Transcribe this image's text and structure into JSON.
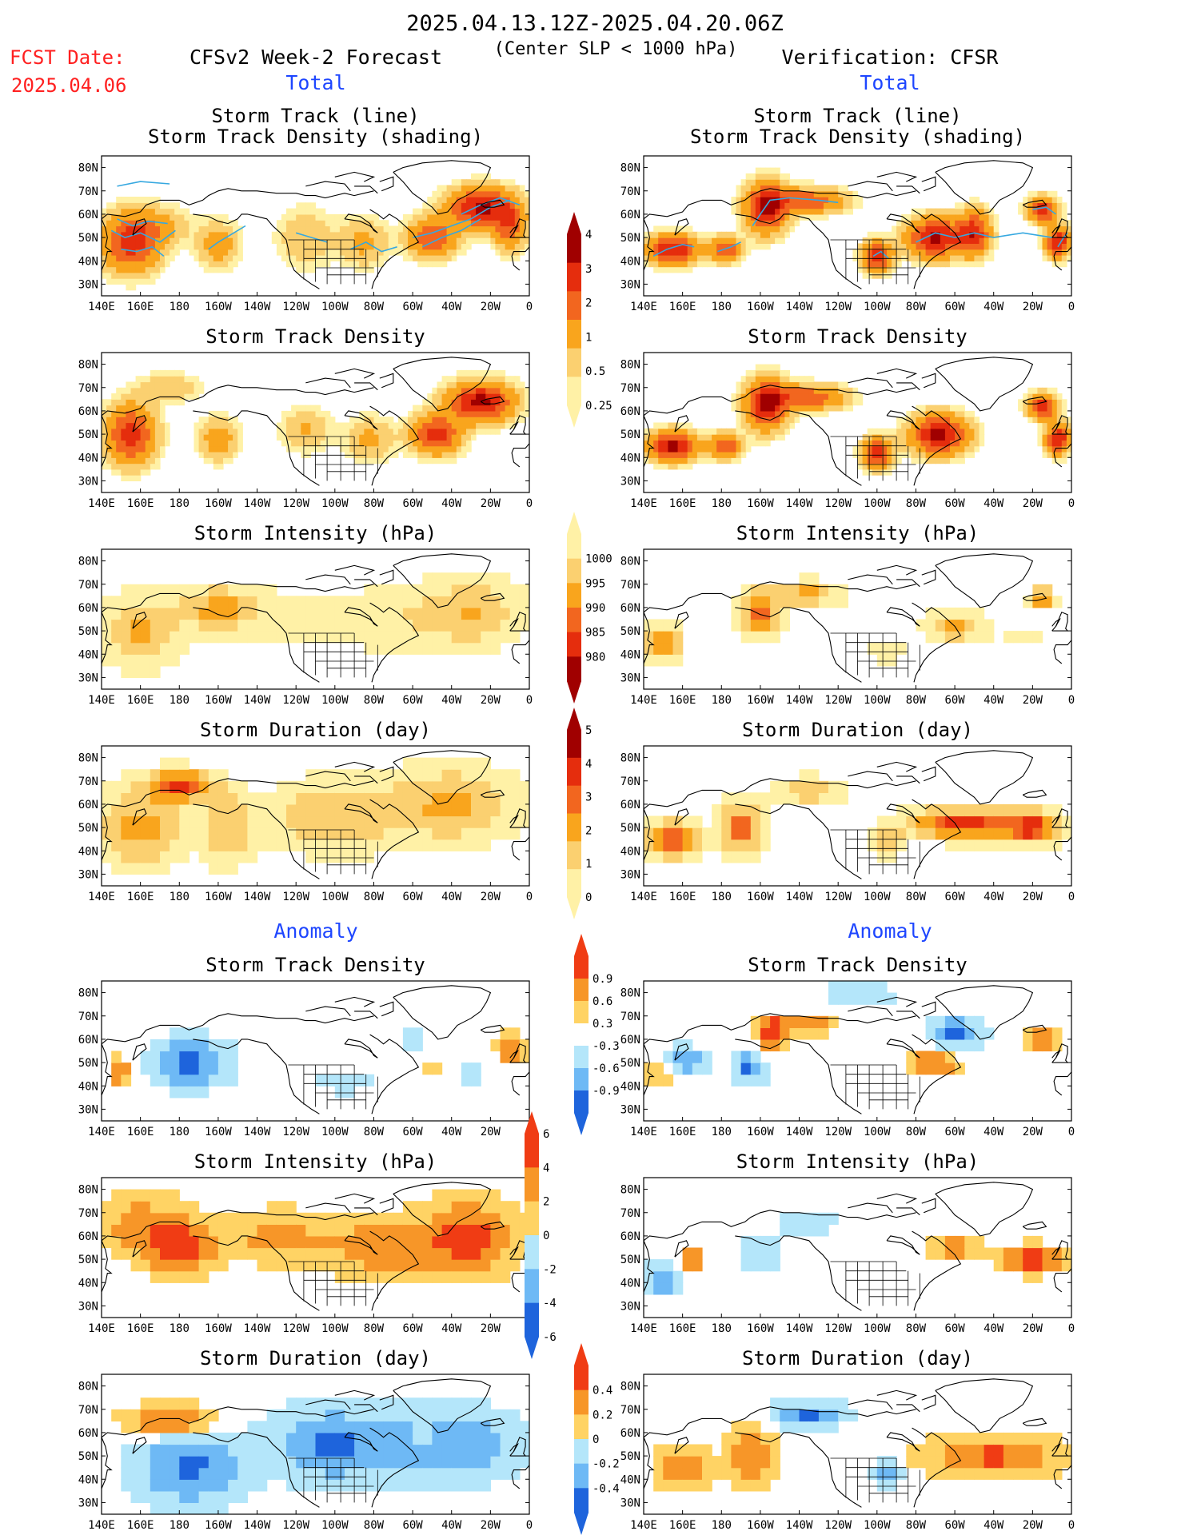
{
  "header": {
    "period": "2025.04.13.12Z-2025.04.20.06Z",
    "subtitle": "(Center SLP < 1000 hPa)",
    "fcst_label": "FCST Date:",
    "fcst_date": "2025.04.06",
    "left_title": "CFSv2 Week-2 Forecast",
    "right_title": "Verification: CFSR",
    "total_label": "Total",
    "anomaly_label": "Anomaly",
    "red": "#ff2020",
    "blue": "#1e46ff"
  },
  "axes": {
    "lon_labels": [
      "140E",
      "160E",
      "180",
      "160W",
      "140W",
      "120W",
      "100W",
      "80W",
      "60W",
      "40W",
      "20W",
      "0"
    ],
    "lat_labels": [
      "80N",
      "70N",
      "60N",
      "50N",
      "40N",
      "30N"
    ],
    "lon_range": [
      140,
      360
    ],
    "lat_range": [
      25,
      85
    ]
  },
  "colorbars": [
    {
      "id": "track-density",
      "labels": [
        "4",
        "3",
        "2",
        "1",
        "0.5",
        "0.25"
      ],
      "colors": [
        "#a00000",
        "#e52d0d",
        "#f2661f",
        "#f9a51d",
        "#fbd070",
        "#fff1a6"
      ]
    },
    {
      "id": "intensity",
      "labels": [
        "1000",
        "995",
        "990",
        "985",
        "980"
      ],
      "colors": [
        "#fff1a6",
        "#fbd070",
        "#f9a51d",
        "#f2661f",
        "#e52d0d",
        "#a00000"
      ]
    },
    {
      "id": "duration",
      "labels": [
        "5",
        "4",
        "3",
        "2",
        "1",
        "0"
      ],
      "colors": [
        "#a00000",
        "#e52d0d",
        "#f2661f",
        "#f9a51d",
        "#fbd070",
        "#fff1a6"
      ]
    },
    {
      "id": "anom-density",
      "labels": [
        "0.9",
        "0.6",
        "0.3",
        "-0.3",
        "-0.6",
        "-0.9"
      ],
      "colors": [
        "#f03c14",
        "#f79628",
        "#ffd364",
        "#ffffff",
        "#b4e6fa",
        "#6eb9f5",
        "#1e64dc"
      ]
    },
    {
      "id": "anom-intensity",
      "labels": [
        "6",
        "4",
        "2",
        "0",
        "-2",
        "-4",
        "-6"
      ],
      "colors": [
        "#f03c14",
        "#f79628",
        "#ffd364",
        "#b4e6fa",
        "#6eb9f5",
        "#1e64dc"
      ]
    },
    {
      "id": "anom-duration",
      "labels": [
        "0.4",
        "0.2",
        "0",
        "-0.2",
        "-0.4"
      ],
      "colors": [
        "#f03c14",
        "#f79628",
        "#ffd364",
        "#b4e6fa",
        "#6eb9f5",
        "#1e64dc"
      ]
    }
  ],
  "chart_data": [
    {
      "type": "heatmap",
      "id": "fcst-track",
      "title": "Storm Track (line)",
      "subtitle": "Storm Track Density (shading)",
      "scale": "density",
      "tracks": true,
      "blobs": [
        {
          "lon": 155,
          "lat": 48,
          "w": 14,
          "h": 12,
          "v": 3.5
        },
        {
          "lon": 170,
          "lat": 55,
          "w": 15,
          "h": 8,
          "v": 1.1
        },
        {
          "lon": 200,
          "lat": 47,
          "w": 10,
          "h": 9,
          "v": 1.6
        },
        {
          "lon": 245,
          "lat": 50,
          "w": 14,
          "h": 12,
          "v": 1.0
        },
        {
          "lon": 275,
          "lat": 48,
          "w": 12,
          "h": 10,
          "v": 1.2
        },
        {
          "lon": 310,
          "lat": 50,
          "w": 12,
          "h": 8,
          "v": 3.0
        },
        {
          "lon": 335,
          "lat": 63,
          "w": 16,
          "h": 8,
          "v": 4.2
        },
        {
          "lon": 350,
          "lat": 55,
          "w": 8,
          "h": 10,
          "v": 2.5
        }
      ]
    },
    {
      "type": "heatmap",
      "id": "cfsr-track",
      "title": "Storm Track (line)",
      "subtitle": "Storm Track Density (shading)",
      "scale": "density",
      "tracks": true,
      "blobs": [
        {
          "lon": 155,
          "lat": 45,
          "w": 12,
          "h": 6,
          "v": 4.2
        },
        {
          "lon": 182,
          "lat": 45,
          "w": 8,
          "h": 5,
          "v": 3.0
        },
        {
          "lon": 203,
          "lat": 63,
          "w": 10,
          "h": 10,
          "v": 4.4
        },
        {
          "lon": 225,
          "lat": 66,
          "w": 18,
          "h": 5,
          "v": 2.8
        },
        {
          "lon": 260,
          "lat": 42,
          "w": 7,
          "h": 6,
          "v": 4.0
        },
        {
          "lon": 290,
          "lat": 50,
          "w": 14,
          "h": 8,
          "v": 4.3
        },
        {
          "lon": 310,
          "lat": 52,
          "w": 8,
          "h": 9,
          "v": 3.5
        },
        {
          "lon": 345,
          "lat": 62,
          "w": 7,
          "h": 5,
          "v": 4.0
        },
        {
          "lon": 353,
          "lat": 48,
          "w": 6,
          "h": 6,
          "v": 4.1
        }
      ]
    },
    {
      "type": "heatmap",
      "id": "fcst-density",
      "title": "Storm Track Density",
      "scale": "density",
      "tracks": false,
      "blobs": [
        {
          "lon": 155,
          "lat": 50,
          "w": 12,
          "h": 12,
          "v": 3.6
        },
        {
          "lon": 175,
          "lat": 70,
          "w": 15,
          "h": 6,
          "v": 1.0
        },
        {
          "lon": 200,
          "lat": 48,
          "w": 10,
          "h": 9,
          "v": 1.5
        },
        {
          "lon": 245,
          "lat": 52,
          "w": 12,
          "h": 9,
          "v": 1.1
        },
        {
          "lon": 278,
          "lat": 48,
          "w": 12,
          "h": 9,
          "v": 1.2
        },
        {
          "lon": 312,
          "lat": 50,
          "w": 12,
          "h": 8,
          "v": 3.5
        },
        {
          "lon": 335,
          "lat": 64,
          "w": 16,
          "h": 8,
          "v": 4.4
        }
      ]
    },
    {
      "type": "heatmap",
      "id": "cfsr-density",
      "title": "Storm Track Density",
      "scale": "density",
      "tracks": false,
      "blobs": [
        {
          "lon": 155,
          "lat": 45,
          "w": 12,
          "h": 6,
          "v": 4.3
        },
        {
          "lon": 182,
          "lat": 45,
          "w": 8,
          "h": 5,
          "v": 3.0
        },
        {
          "lon": 203,
          "lat": 63,
          "w": 10,
          "h": 10,
          "v": 4.4
        },
        {
          "lon": 225,
          "lat": 66,
          "w": 18,
          "h": 5,
          "v": 2.8
        },
        {
          "lon": 260,
          "lat": 42,
          "w": 7,
          "h": 6,
          "v": 4.0
        },
        {
          "lon": 292,
          "lat": 50,
          "w": 14,
          "h": 8,
          "v": 4.4
        },
        {
          "lon": 345,
          "lat": 62,
          "w": 7,
          "h": 5,
          "v": 4.0
        },
        {
          "lon": 353,
          "lat": 48,
          "w": 6,
          "h": 6,
          "v": 4.1
        }
      ]
    },
    {
      "type": "heatmap",
      "id": "fcst-intensity",
      "title": "Storm Intensity (hPa)",
      "scale": "intensity",
      "tracks": false,
      "blobs": [
        {
          "lon": 160,
          "lat": 50,
          "w": 20,
          "h": 14,
          "v": 1.7
        },
        {
          "lon": 200,
          "lat": 60,
          "w": 18,
          "h": 9,
          "v": 1.9
        },
        {
          "lon": 240,
          "lat": 55,
          "w": 30,
          "h": 14,
          "v": 0.6
        },
        {
          "lon": 290,
          "lat": 55,
          "w": 25,
          "h": 14,
          "v": 0.7
        },
        {
          "lon": 330,
          "lat": 58,
          "w": 25,
          "h": 14,
          "v": 1.6
        }
      ]
    },
    {
      "type": "heatmap",
      "id": "cfsr-intensity",
      "title": "Storm Intensity (hPa)",
      "scale": "intensity",
      "tracks": false,
      "blobs": [
        {
          "lon": 150,
          "lat": 45,
          "w": 8,
          "h": 7,
          "v": 2.6
        },
        {
          "lon": 200,
          "lat": 58,
          "w": 10,
          "h": 9,
          "v": 2.7
        },
        {
          "lon": 225,
          "lat": 66,
          "w": 16,
          "h": 5,
          "v": 1.8
        },
        {
          "lon": 265,
          "lat": 42,
          "w": 10,
          "h": 6,
          "v": 0.6
        },
        {
          "lon": 300,
          "lat": 52,
          "w": 15,
          "h": 6,
          "v": 1.8
        },
        {
          "lon": 345,
          "lat": 64,
          "w": 6,
          "h": 4,
          "v": 3.0
        },
        {
          "lon": 335,
          "lat": 48,
          "w": 12,
          "h": 5,
          "v": 0.5
        }
      ]
    },
    {
      "type": "heatmap",
      "id": "fcst-duration",
      "title": "Storm Duration (day)",
      "scale": "duration",
      "tracks": false,
      "blobs": [
        {
          "lon": 180,
          "lat": 68,
          "w": 16,
          "h": 6,
          "v": 4.3
        },
        {
          "lon": 160,
          "lat": 50,
          "w": 20,
          "h": 15,
          "v": 2.4
        },
        {
          "lon": 205,
          "lat": 50,
          "w": 12,
          "h": 14,
          "v": 2.0
        },
        {
          "lon": 260,
          "lat": 55,
          "w": 30,
          "h": 14,
          "v": 1.9
        },
        {
          "lon": 320,
          "lat": 60,
          "w": 30,
          "h": 14,
          "v": 2.3
        }
      ]
    },
    {
      "type": "heatmap",
      "id": "cfsr-duration",
      "title": "Storm Duration (day)",
      "scale": "duration",
      "tracks": false,
      "blobs": [
        {
          "lon": 155,
          "lat": 45,
          "w": 12,
          "h": 7,
          "v": 3.6
        },
        {
          "lon": 190,
          "lat": 50,
          "w": 10,
          "h": 10,
          "v": 3.6
        },
        {
          "lon": 225,
          "lat": 66,
          "w": 16,
          "h": 5,
          "v": 2.0
        },
        {
          "lon": 265,
          "lat": 44,
          "w": 8,
          "h": 6,
          "v": 1.8
        },
        {
          "lon": 305,
          "lat": 52,
          "w": 25,
          "h": 6,
          "v": 4.6
        },
        {
          "lon": 340,
          "lat": 50,
          "w": 12,
          "h": 6,
          "v": 4.4
        }
      ]
    },
    {
      "type": "heatmap",
      "id": "fcst-anom-density",
      "title": "Storm Track Density",
      "scale": "anomDensity",
      "tracks": false,
      "blobs": [
        {
          "lon": 150,
          "lat": 46,
          "w": 6,
          "h": 8,
          "v": 1.0
        },
        {
          "lon": 185,
          "lat": 50,
          "w": 25,
          "h": 12,
          "v": -1.0
        },
        {
          "lon": 265,
          "lat": 42,
          "w": 25,
          "h": 10,
          "v": -0.4
        },
        {
          "lon": 310,
          "lat": 48,
          "w": 8,
          "h": 5,
          "v": 0.7
        },
        {
          "lon": 350,
          "lat": 56,
          "w": 8,
          "h": 8,
          "v": 1.0
        },
        {
          "lon": 300,
          "lat": 62,
          "w": 8,
          "h": 8,
          "v": -0.5
        },
        {
          "lon": 330,
          "lat": 45,
          "w": 15,
          "h": 8,
          "v": -0.4
        }
      ]
    },
    {
      "type": "heatmap",
      "id": "cfsr-anom-density",
      "title": "Storm Track Density",
      "scale": "anomDensity",
      "tracks": false,
      "blobs": [
        {
          "lon": 160,
          "lat": 50,
          "w": 12,
          "h": 8,
          "v": -1.0
        },
        {
          "lon": 150,
          "lat": 45,
          "w": 10,
          "h": 5,
          "v": 1.0
        },
        {
          "lon": 205,
          "lat": 62,
          "w": 10,
          "h": 10,
          "v": 1.0
        },
        {
          "lon": 195,
          "lat": 48,
          "w": 10,
          "h": 8,
          "v": -1.0
        },
        {
          "lon": 225,
          "lat": 66,
          "w": 16,
          "h": 4,
          "v": 1.0
        },
        {
          "lon": 290,
          "lat": 50,
          "w": 16,
          "h": 6,
          "v": 1.0
        },
        {
          "lon": 300,
          "lat": 62,
          "w": 16,
          "h": 8,
          "v": -1.0
        },
        {
          "lon": 345,
          "lat": 60,
          "w": 8,
          "h": 6,
          "v": 1.0
        },
        {
          "lon": 250,
          "lat": 80,
          "w": 90,
          "h": 5,
          "v": -0.4
        }
      ]
    },
    {
      "type": "heatmap",
      "id": "fcst-anom-intensity",
      "title": "Storm Intensity (hPa)",
      "scale": "anomIntensity",
      "tracks": false,
      "blobs": [
        {
          "lon": 180,
          "lat": 55,
          "w": 16,
          "h": 10,
          "v": 6.0
        },
        {
          "lon": 160,
          "lat": 65,
          "w": 20,
          "h": 12,
          "v": 3.0
        },
        {
          "lon": 230,
          "lat": 60,
          "w": 30,
          "h": 10,
          "v": 2.5
        },
        {
          "lon": 290,
          "lat": 55,
          "w": 30,
          "h": 12,
          "v": 3.5
        },
        {
          "lon": 330,
          "lat": 60,
          "w": 20,
          "h": 14,
          "v": 5.0
        }
      ]
    },
    {
      "type": "heatmap",
      "id": "cfsr-anom-intensity",
      "title": "Storm Intensity (hPa)",
      "scale": "anomIntensity",
      "tracks": false,
      "blobs": [
        {
          "lon": 165,
          "lat": 50,
          "w": 5,
          "h": 4,
          "v": 6.0
        },
        {
          "lon": 150,
          "lat": 42,
          "w": 8,
          "h": 6,
          "v": -4.0
        },
        {
          "lon": 200,
          "lat": 52,
          "w": 10,
          "h": 8,
          "v": -2.0
        },
        {
          "lon": 225,
          "lat": 66,
          "w": 16,
          "h": 5,
          "v": -1.5
        },
        {
          "lon": 340,
          "lat": 50,
          "w": 14,
          "h": 5,
          "v": 6.0
        },
        {
          "lon": 300,
          "lat": 55,
          "w": 12,
          "h": 5,
          "v": 3.0
        }
      ]
    },
    {
      "type": "heatmap",
      "id": "fcst-anom-duration",
      "title": "Storm Duration (day)",
      "scale": "anomDuration",
      "tracks": false,
      "blobs": [
        {
          "lon": 185,
          "lat": 45,
          "w": 25,
          "h": 14,
          "v": -0.45
        },
        {
          "lon": 175,
          "lat": 65,
          "w": 20,
          "h": 6,
          "v": 0.45
        },
        {
          "lon": 260,
          "lat": 55,
          "w": 30,
          "h": 14,
          "v": -0.45
        },
        {
          "lon": 320,
          "lat": 55,
          "w": 30,
          "h": 14,
          "v": -0.4
        },
        {
          "lon": 305,
          "lat": 58,
          "w": 6,
          "h": 6,
          "v": 0.3
        }
      ]
    },
    {
      "type": "heatmap",
      "id": "cfsr-anom-duration",
      "title": "Storm Duration (day)",
      "scale": "anomDuration",
      "tracks": false,
      "blobs": [
        {
          "lon": 160,
          "lat": 45,
          "w": 12,
          "h": 8,
          "v": 0.45
        },
        {
          "lon": 195,
          "lat": 50,
          "w": 10,
          "h": 10,
          "v": 0.45
        },
        {
          "lon": 225,
          "lat": 68,
          "w": 16,
          "h": 5,
          "v": -0.45
        },
        {
          "lon": 265,
          "lat": 43,
          "w": 6,
          "h": 5,
          "v": -0.45
        },
        {
          "lon": 320,
          "lat": 50,
          "w": 30,
          "h": 8,
          "v": 0.45
        }
      ]
    }
  ]
}
